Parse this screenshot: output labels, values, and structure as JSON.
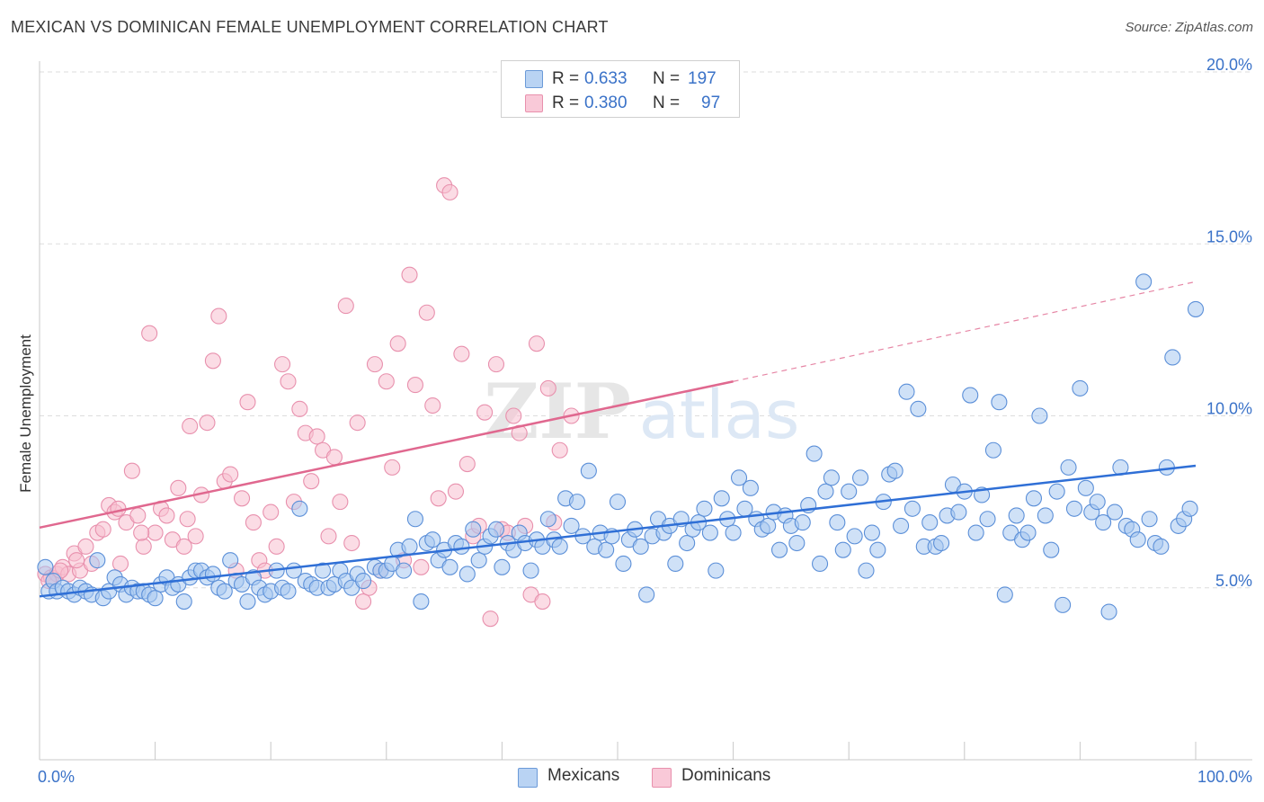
{
  "title": "MEXICAN VS DOMINICAN FEMALE UNEMPLOYMENT CORRELATION CHART",
  "source": "Source: ZipAtlas.com",
  "legend": {
    "rows": [
      {
        "r_label": "R =",
        "r_value": "0.633",
        "n_label": "N =",
        "n_value": "197"
      },
      {
        "r_label": "R =",
        "r_value": "0.380",
        "n_label": "N =",
        "n_value": "97"
      }
    ]
  },
  "bottom_legend": {
    "mexicans": "Mexicans",
    "dominicans": "Dominicans"
  },
  "colors": {
    "mexicans_fill": "#a8c8f0",
    "mexicans_stroke": "#5b8fd8",
    "mexicans_line": "#2f6fd6",
    "dominicans_fill": "#f7bfd0",
    "dominicans_stroke": "#e890ad",
    "dominicans_line": "#e0688f",
    "tick_text": "#3a72c8",
    "grid": "#dddddd"
  },
  "chart_data": {
    "type": "scatter",
    "title": "MEXICAN VS DOMINICAN FEMALE UNEMPLOYMENT CORRELATION CHART",
    "xlabel": "",
    "ylabel": "Female Unemployment",
    "xlim": [
      0,
      100
    ],
    "ylim": [
      0,
      20
    ],
    "x_tick_labels": [
      "0.0%",
      "100.0%"
    ],
    "y_ticks": [
      5,
      10,
      15,
      20
    ],
    "y_tick_labels": [
      "5.0%",
      "10.0%",
      "15.0%",
      "20.0%"
    ],
    "grid": true,
    "legend_position": "top-center",
    "series": [
      {
        "name": "Mexicans",
        "r": 0.633,
        "n": 197,
        "trend": {
          "x": [
            0,
            100
          ],
          "y": [
            4.75,
            8.55
          ]
        },
        "points": [
          [
            0.5,
            5.6
          ],
          [
            0.8,
            4.9
          ],
          [
            1.2,
            5.2
          ],
          [
            1.5,
            4.9
          ],
          [
            2,
            5.0
          ],
          [
            2.5,
            4.9
          ],
          [
            3,
            4.8
          ],
          [
            3.5,
            5.0
          ],
          [
            4,
            4.9
          ],
          [
            4.5,
            4.8
          ],
          [
            5,
            5.8
          ],
          [
            5.5,
            4.7
          ],
          [
            6,
            4.9
          ],
          [
            6.5,
            5.3
          ],
          [
            7,
            5.1
          ],
          [
            7.5,
            4.8
          ],
          [
            8,
            5.0
          ],
          [
            8.5,
            4.9
          ],
          [
            9,
            4.9
          ],
          [
            9.5,
            4.8
          ],
          [
            10,
            4.7
          ],
          [
            10.5,
            5.1
          ],
          [
            11,
            5.3
          ],
          [
            11.5,
            5.0
          ],
          [
            12,
            5.1
          ],
          [
            12.5,
            4.6
          ],
          [
            13,
            5.3
          ],
          [
            13.5,
            5.5
          ],
          [
            14,
            5.5
          ],
          [
            14.5,
            5.3
          ],
          [
            15,
            5.4
          ],
          [
            15.5,
            5.0
          ],
          [
            16,
            4.9
          ],
          [
            16.5,
            5.8
          ],
          [
            17,
            5.2
          ],
          [
            17.5,
            5.1
          ],
          [
            18,
            4.6
          ],
          [
            18.5,
            5.3
          ],
          [
            19,
            5.0
          ],
          [
            19.5,
            4.8
          ],
          [
            20,
            4.9
          ],
          [
            20.5,
            5.5
          ],
          [
            21,
            5.0
          ],
          [
            21.5,
            4.9
          ],
          [
            22,
            5.5
          ],
          [
            22.5,
            7.3
          ],
          [
            23,
            5.2
          ],
          [
            23.5,
            5.1
          ],
          [
            24,
            5.0
          ],
          [
            24.5,
            5.5
          ],
          [
            25,
            5.0
          ],
          [
            25.5,
            5.1
          ],
          [
            26,
            5.5
          ],
          [
            26.5,
            5.2
          ],
          [
            27,
            5.0
          ],
          [
            27.5,
            5.4
          ],
          [
            28,
            5.2
          ],
          [
            29,
            5.6
          ],
          [
            29.5,
            5.5
          ],
          [
            30,
            5.5
          ],
          [
            30.5,
            5.7
          ],
          [
            31,
            6.1
          ],
          [
            31.5,
            5.5
          ],
          [
            32,
            6.2
          ],
          [
            32.5,
            7.0
          ],
          [
            33,
            4.6
          ],
          [
            33.5,
            6.3
          ],
          [
            34,
            6.4
          ],
          [
            34.5,
            5.8
          ],
          [
            35,
            6.1
          ],
          [
            35.5,
            5.6
          ],
          [
            36,
            6.3
          ],
          [
            36.5,
            6.2
          ],
          [
            37,
            5.4
          ],
          [
            37.5,
            6.7
          ],
          [
            38,
            5.8
          ],
          [
            38.5,
            6.2
          ],
          [
            39,
            6.5
          ],
          [
            39.5,
            6.7
          ],
          [
            40,
            5.6
          ],
          [
            40.5,
            6.3
          ],
          [
            41,
            6.1
          ],
          [
            41.5,
            6.6
          ],
          [
            42,
            6.3
          ],
          [
            42.5,
            5.5
          ],
          [
            43,
            6.4
          ],
          [
            43.5,
            6.2
          ],
          [
            44,
            7.0
          ],
          [
            44.5,
            6.4
          ],
          [
            45,
            6.2
          ],
          [
            45.5,
            7.6
          ],
          [
            46,
            6.8
          ],
          [
            46.5,
            7.5
          ],
          [
            47,
            6.5
          ],
          [
            47.5,
            8.4
          ],
          [
            48,
            6.2
          ],
          [
            48.5,
            6.6
          ],
          [
            49,
            6.1
          ],
          [
            49.5,
            6.5
          ],
          [
            50,
            7.5
          ],
          [
            50.5,
            5.7
          ],
          [
            51,
            6.4
          ],
          [
            51.5,
            6.7
          ],
          [
            52,
            6.2
          ],
          [
            52.5,
            4.8
          ],
          [
            53,
            6.5
          ],
          [
            53.5,
            7.0
          ],
          [
            54,
            6.6
          ],
          [
            54.5,
            6.8
          ],
          [
            55,
            5.7
          ],
          [
            55.5,
            7.0
          ],
          [
            56,
            6.3
          ],
          [
            56.5,
            6.7
          ],
          [
            57,
            6.9
          ],
          [
            57.5,
            7.3
          ],
          [
            58,
            6.6
          ],
          [
            58.5,
            5.5
          ],
          [
            59,
            7.6
          ],
          [
            59.5,
            7.0
          ],
          [
            60,
            6.6
          ],
          [
            60.5,
            8.2
          ],
          [
            61,
            7.3
          ],
          [
            61.5,
            7.9
          ],
          [
            62,
            7.0
          ],
          [
            62.5,
            6.7
          ],
          [
            63,
            6.8
          ],
          [
            63.5,
            7.2
          ],
          [
            64,
            6.1
          ],
          [
            64.5,
            7.1
          ],
          [
            65,
            6.8
          ],
          [
            65.5,
            6.3
          ],
          [
            66,
            6.9
          ],
          [
            66.5,
            7.4
          ],
          [
            67,
            8.9
          ],
          [
            67.5,
            5.7
          ],
          [
            68,
            7.8
          ],
          [
            68.5,
            8.2
          ],
          [
            69,
            6.9
          ],
          [
            69.5,
            6.1
          ],
          [
            70,
            7.8
          ],
          [
            70.5,
            6.5
          ],
          [
            71,
            8.2
          ],
          [
            71.5,
            5.5
          ],
          [
            72,
            6.6
          ],
          [
            72.5,
            6.1
          ],
          [
            73,
            7.5
          ],
          [
            73.5,
            8.3
          ],
          [
            74,
            8.4
          ],
          [
            74.5,
            6.8
          ],
          [
            75,
            10.7
          ],
          [
            75.5,
            7.3
          ],
          [
            76,
            10.2
          ],
          [
            76.5,
            6.2
          ],
          [
            77,
            6.9
          ],
          [
            77.5,
            6.2
          ],
          [
            78,
            6.3
          ],
          [
            78.5,
            7.1
          ],
          [
            79,
            8.0
          ],
          [
            79.5,
            7.2
          ],
          [
            80,
            7.8
          ],
          [
            80.5,
            10.6
          ],
          [
            81,
            6.6
          ],
          [
            81.5,
            7.7
          ],
          [
            82,
            7.0
          ],
          [
            82.5,
            9.0
          ],
          [
            83,
            10.4
          ],
          [
            83.5,
            4.8
          ],
          [
            84,
            6.6
          ],
          [
            84.5,
            7.1
          ],
          [
            85,
            6.4
          ],
          [
            85.5,
            6.6
          ],
          [
            86,
            7.6
          ],
          [
            86.5,
            10.0
          ],
          [
            87,
            7.1
          ],
          [
            87.5,
            6.1
          ],
          [
            88,
            7.8
          ],
          [
            88.5,
            4.5
          ],
          [
            89,
            8.5
          ],
          [
            89.5,
            7.3
          ],
          [
            90,
            10.8
          ],
          [
            90.5,
            7.9
          ],
          [
            91,
            7.2
          ],
          [
            91.5,
            7.5
          ],
          [
            92,
            6.9
          ],
          [
            92.5,
            4.3
          ],
          [
            93,
            7.2
          ],
          [
            93.5,
            8.5
          ],
          [
            94,
            6.8
          ],
          [
            94.5,
            6.7
          ],
          [
            95,
            6.4
          ],
          [
            95.5,
            13.9
          ],
          [
            96,
            7.0
          ],
          [
            96.5,
            6.3
          ],
          [
            97,
            6.2
          ],
          [
            97.5,
            8.5
          ],
          [
            98,
            11.7
          ],
          [
            98.5,
            6.8
          ],
          [
            99,
            7.0
          ],
          [
            99.5,
            7.3
          ],
          [
            100,
            13.1
          ]
        ]
      },
      {
        "name": "Dominicans",
        "r": 0.38,
        "n": 97,
        "trend": {
          "x": [
            0,
            60
          ],
          "y": [
            6.75,
            11.0
          ]
        },
        "trend_extension": {
          "x": [
            60,
            100
          ],
          "y": [
            11.0,
            13.9
          ]
        },
        "points": [
          [
            0.5,
            5.4
          ],
          [
            1,
            5.3
          ],
          [
            1.5,
            5.4
          ],
          [
            2,
            5.6
          ],
          [
            2.5,
            5.4
          ],
          [
            3,
            6.0
          ],
          [
            3.5,
            5.5
          ],
          [
            4,
            6.2
          ],
          [
            4.5,
            5.7
          ],
          [
            5,
            6.6
          ],
          [
            5.5,
            6.7
          ],
          [
            6,
            7.4
          ],
          [
            6.5,
            7.2
          ],
          [
            7,
            5.7
          ],
          [
            7.5,
            6.9
          ],
          [
            8,
            8.4
          ],
          [
            8.5,
            7.1
          ],
          [
            9,
            6.2
          ],
          [
            9.5,
            12.4
          ],
          [
            10,
            6.6
          ],
          [
            10.5,
            7.3
          ],
          [
            11,
            7.1
          ],
          [
            11.5,
            6.4
          ],
          [
            12,
            7.9
          ],
          [
            12.5,
            6.2
          ],
          [
            13,
            9.7
          ],
          [
            13.5,
            6.5
          ],
          [
            14,
            7.7
          ],
          [
            14.5,
            9.8
          ],
          [
            15,
            11.6
          ],
          [
            15.5,
            12.9
          ],
          [
            16,
            8.1
          ],
          [
            16.5,
            8.3
          ],
          [
            17,
            5.5
          ],
          [
            17.5,
            7.6
          ],
          [
            18,
            10.4
          ],
          [
            18.5,
            6.9
          ],
          [
            19,
            5.8
          ],
          [
            19.5,
            5.5
          ],
          [
            20,
            7.2
          ],
          [
            20.5,
            6.2
          ],
          [
            21,
            11.5
          ],
          [
            21.5,
            11.0
          ],
          [
            22,
            7.5
          ],
          [
            22.5,
            10.2
          ],
          [
            23,
            9.5
          ],
          [
            23.5,
            8.1
          ],
          [
            24,
            9.4
          ],
          [
            24.5,
            9.0
          ],
          [
            25,
            6.5
          ],
          [
            25.5,
            8.8
          ],
          [
            26,
            7.5
          ],
          [
            26.5,
            13.2
          ],
          [
            27,
            6.3
          ],
          [
            27.5,
            9.8
          ],
          [
            28,
            4.6
          ],
          [
            28.5,
            5.0
          ],
          [
            29,
            11.5
          ],
          [
            29.5,
            5.5
          ],
          [
            30,
            11.0
          ],
          [
            30.5,
            8.5
          ],
          [
            31,
            12.1
          ],
          [
            31.5,
            5.8
          ],
          [
            32,
            14.1
          ],
          [
            32.5,
            10.9
          ],
          [
            33,
            5.6
          ],
          [
            33.5,
            13.0
          ],
          [
            34,
            10.3
          ],
          [
            34.5,
            7.6
          ],
          [
            35,
            16.7
          ],
          [
            35.5,
            16.5
          ],
          [
            36,
            7.8
          ],
          [
            36.5,
            11.8
          ],
          [
            37,
            8.6
          ],
          [
            37.5,
            6.5
          ],
          [
            38,
            6.8
          ],
          [
            38.5,
            10.1
          ],
          [
            39,
            4.1
          ],
          [
            39.5,
            11.5
          ],
          [
            40,
            6.7
          ],
          [
            40.5,
            6.6
          ],
          [
            41,
            10.0
          ],
          [
            41.5,
            9.5
          ],
          [
            42,
            6.8
          ],
          [
            42.5,
            4.8
          ],
          [
            43,
            12.1
          ],
          [
            43.5,
            4.6
          ],
          [
            44,
            10.8
          ],
          [
            44.5,
            6.9
          ],
          [
            45,
            9.0
          ],
          [
            46,
            10.0
          ],
          [
            0.8,
            5.2
          ],
          [
            1.8,
            5.5
          ],
          [
            3.2,
            5.8
          ],
          [
            6.8,
            7.3
          ],
          [
            8.8,
            6.6
          ],
          [
            12.8,
            7.0
          ]
        ]
      }
    ]
  }
}
